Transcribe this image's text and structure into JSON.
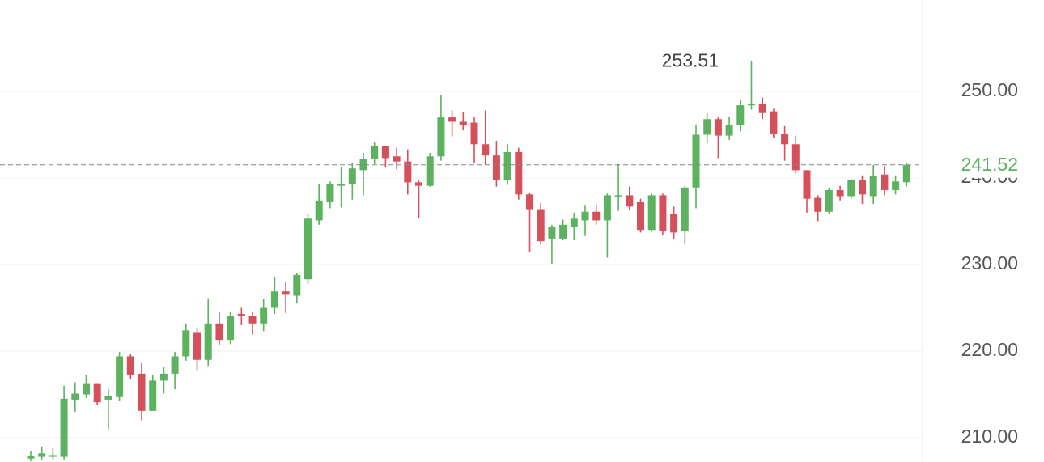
{
  "chart_data": {
    "type": "candlestick",
    "categories": [
      null,
      null,
      null,
      null,
      null,
      null,
      null,
      null,
      null,
      null,
      null,
      null,
      null,
      null,
      null,
      null,
      null,
      null,
      null,
      null,
      null,
      null,
      null,
      null,
      null,
      null,
      null,
      null,
      null,
      null,
      null,
      null,
      null,
      null,
      null,
      null,
      null,
      null,
      null,
      null,
      null,
      null,
      null,
      null,
      null,
      null,
      null,
      null,
      null,
      null,
      null,
      null,
      null,
      null,
      null,
      null,
      null,
      null,
      null,
      null,
      null,
      null,
      null,
      null,
      null,
      null,
      null,
      null,
      null,
      null,
      null,
      null,
      null,
      null,
      null,
      null,
      null,
      null,
      null,
      null
    ],
    "open": [
      207.6,
      207.8,
      207.8,
      207.8,
      214.4,
      215.0,
      216.3,
      214.4,
      214.7,
      219.4,
      217.4,
      213.1,
      216.6,
      217.4,
      219.4,
      222.2,
      219.0,
      223.2,
      221.3,
      224.3,
      224.1,
      223.2,
      225.0,
      226.9,
      226.4,
      228.3,
      235.1,
      237.2,
      239.1,
      239.3,
      240.9,
      242.2,
      243.7,
      242.5,
      241.9,
      239.5,
      239.1,
      242.5,
      247.0,
      246.5,
      246.4,
      243.9,
      242.6,
      239.8,
      243.0,
      238.1,
      236.4,
      233.0,
      233.0,
      234.4,
      235.1,
      236.1,
      235.1,
      237.9,
      238.0,
      237.2,
      234.0,
      238.0,
      235.8,
      233.9,
      238.9,
      245.0,
      246.8,
      244.9,
      246.1,
      248.4,
      248.6,
      247.7,
      245.1,
      243.9,
      240.9,
      237.7,
      236.1,
      238.6,
      237.9,
      239.8,
      237.9,
      240.4,
      238.6,
      239.5
    ],
    "high": [
      208.5,
      209.0,
      208.8,
      216.0,
      216.4,
      217.2,
      216.3,
      215.6,
      219.9,
      219.7,
      218.6,
      217.3,
      218.2,
      219.9,
      223.2,
      222.6,
      226.1,
      224.5,
      224.6,
      225.0,
      224.6,
      226.0,
      228.6,
      228.0,
      229.0,
      235.8,
      239.3,
      239.6,
      241.3,
      241.7,
      242.9,
      244.1,
      243.7,
      243.5,
      243.3,
      239.7,
      242.9,
      249.6,
      247.8,
      247.6,
      247.0,
      247.8,
      244.3,
      243.9,
      243.5,
      238.3,
      237.1,
      234.6,
      235.2,
      236.0,
      236.9,
      236.9,
      238.2,
      241.6,
      239.0,
      237.6,
      238.2,
      238.2,
      236.7,
      239.1,
      246.1,
      247.5,
      247.1,
      247.1,
      249.0,
      253.51,
      249.3,
      248.0,
      246.0,
      244.9,
      240.9,
      238.0,
      238.9,
      239.1,
      239.9,
      240.3,
      241.5,
      241.4,
      240.3,
      241.8
    ],
    "low": [
      207.3,
      207.5,
      207.5,
      207.5,
      213.0,
      214.6,
      213.8,
      211.0,
      214.3,
      216.8,
      212.0,
      213.1,
      215.1,
      215.6,
      218.9,
      217.8,
      218.3,
      220.7,
      220.8,
      223.0,
      221.9,
      222.3,
      224.3,
      224.4,
      225.5,
      227.8,
      234.6,
      236.5,
      236.6,
      237.5,
      238.0,
      241.6,
      241.3,
      241.0,
      238.1,
      235.4,
      239.0,
      242.0,
      244.8,
      245.5,
      241.7,
      241.5,
      239.0,
      239.2,
      237.5,
      231.5,
      232.3,
      230.1,
      232.8,
      232.8,
      233.3,
      234.6,
      230.8,
      236.2,
      236.3,
      233.7,
      233.8,
      233.4,
      233.0,
      232.3,
      236.5,
      244.0,
      242.3,
      244.4,
      245.4,
      247.9,
      246.8,
      244.6,
      242.0,
      240.5,
      236.0,
      235.0,
      235.8,
      237.4,
      237.6,
      237.0,
      237.0,
      238.0,
      238.1,
      239.0
    ],
    "close": [
      207.9,
      208.2,
      208.0,
      214.5,
      215.1,
      216.3,
      214.1,
      214.8,
      219.4,
      217.3,
      213.1,
      216.6,
      217.4,
      219.4,
      222.4,
      219.0,
      223.2,
      221.3,
      224.1,
      224.1,
      223.2,
      225.0,
      226.9,
      226.6,
      228.8,
      235.3,
      237.4,
      239.3,
      239.3,
      241.1,
      242.2,
      243.7,
      242.3,
      241.9,
      239.5,
      239.1,
      242.5,
      247.0,
      246.5,
      246.1,
      243.9,
      242.6,
      239.8,
      243.0,
      238.1,
      236.4,
      232.7,
      234.4,
      234.6,
      235.3,
      236.1,
      235.1,
      238.0,
      238.0,
      236.7,
      234.0,
      238.0,
      233.9,
      233.7,
      238.9,
      245.0,
      246.8,
      244.9,
      246.1,
      248.4,
      248.6,
      247.5,
      245.1,
      243.9,
      240.9,
      237.6,
      236.1,
      238.6,
      237.9,
      239.8,
      238.1,
      240.2,
      238.6,
      239.6,
      241.52
    ],
    "up_color": "#5cb25f",
    "down_color": "#d5505b",
    "ylim": [
      207.2,
      260.56
    ],
    "yticks": [
      {
        "value": 210,
        "label": "210.00"
      },
      {
        "value": 220,
        "label": "220.00"
      },
      {
        "value": 230,
        "label": "230.00"
      },
      {
        "value": 240,
        "label": "240.00"
      },
      {
        "value": 250,
        "label": "250.00"
      }
    ],
    "grid": true,
    "max_annotation": 253.51,
    "last_price": 241.52
  }
}
